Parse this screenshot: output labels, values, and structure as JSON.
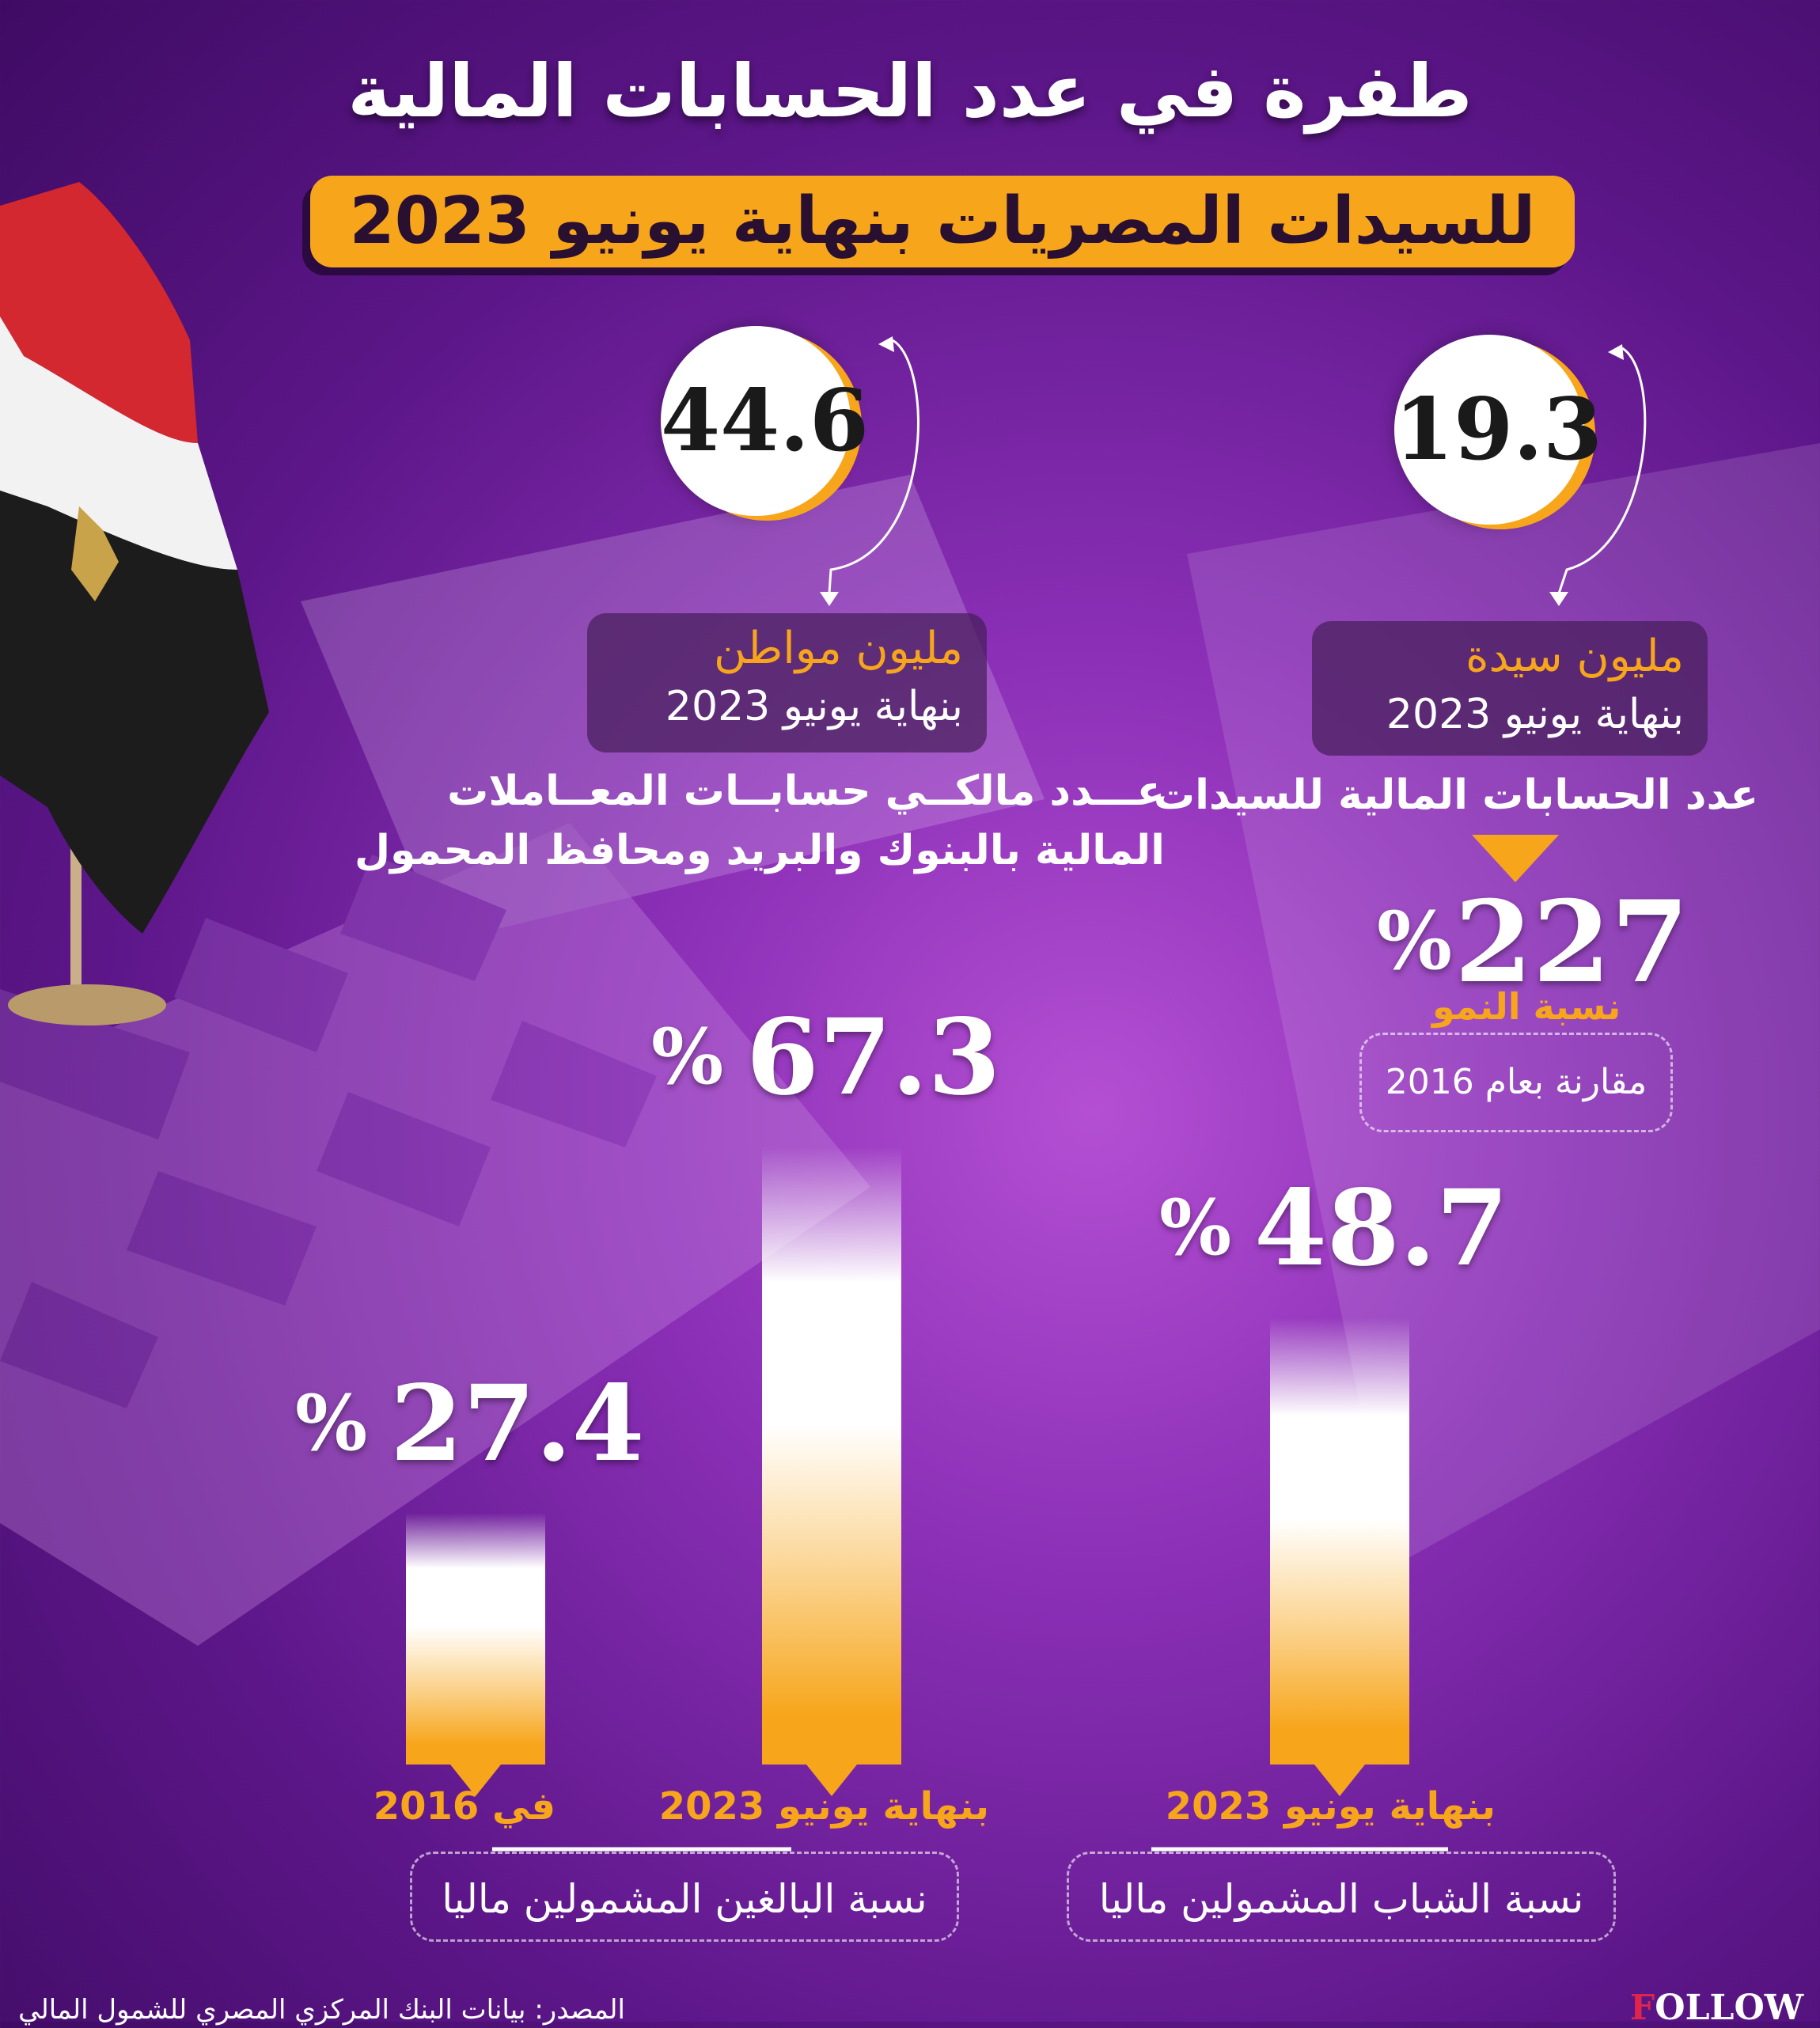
{
  "title": "طفرة في عدد الحسابات المالية",
  "subtitle": "للسيدات المصريات بنهاية يونيو 2023",
  "colors": {
    "accent": "#f7a61c",
    "background": "#7a27a8",
    "bar_top": "#ffffff",
    "bar_bottom": "#f7a61c"
  },
  "stats": {
    "women": {
      "value": "19.3",
      "unit": "مليون سيدة",
      "date": "بنهاية يونيو 2023",
      "description": "عدد الحسابات المالية للسيدات",
      "growth_value": "227",
      "growth_percent_sign": "%",
      "growth_label": "نسبة النمو",
      "comparison": "مقارنة بعام 2016"
    },
    "citizens": {
      "value": "44.6",
      "unit": "مليون مواطن",
      "date": "بنهاية يونيو 2023",
      "description_line1": "عـــدد مالكــي حسابــات المعــاملات",
      "description_line2": "المالية بالبنوك والبريد ومحافظ المحمول"
    }
  },
  "chart_data": [
    {
      "type": "bar",
      "group_label": "نسبة البالغين المشمولين ماليا",
      "categories": [
        "في 2016",
        "بنهاية يونيو 2023"
      ],
      "values": [
        27.4,
        67.3
      ],
      "value_labels": [
        "27.4",
        "67.3"
      ],
      "unit": "%"
    },
    {
      "type": "bar",
      "group_label": "نسبة الشباب المشمولين ماليا",
      "categories": [
        "بنهاية يونيو 2023"
      ],
      "values": [
        48.7
      ],
      "value_labels": [
        "48.7"
      ],
      "unit": "%"
    }
  ],
  "source": "المصدر: بيانات البنك المركزي المصري للشمول المالي",
  "logo": {
    "initial": "F",
    "rest": "OLLOW"
  }
}
